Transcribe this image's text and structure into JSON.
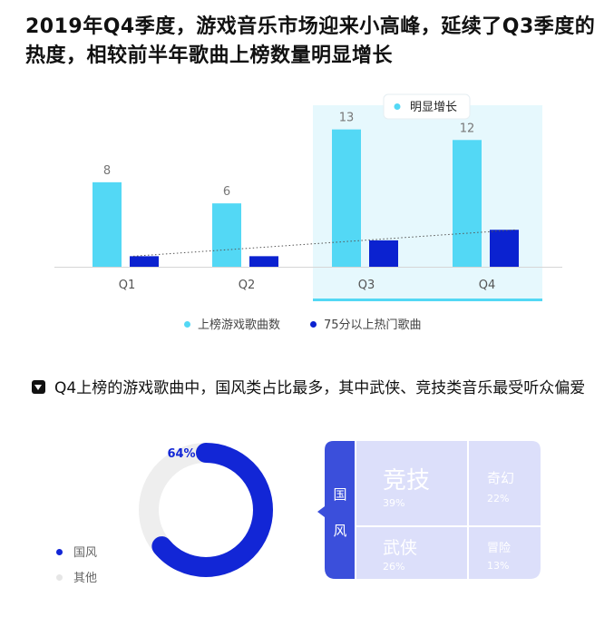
{
  "headline": "2019年Q4季度，游戏音乐市场迎来小高峰，延续了Q3季度的热度，相较前半年歌曲上榜数量明显增长",
  "chart_data": [
    {
      "type": "bar",
      "categories": [
        "Q1",
        "Q2",
        "Q3",
        "Q4"
      ],
      "series": [
        {
          "name": "上榜游戏歌曲数",
          "values": [
            8,
            6,
            13,
            12
          ],
          "color": "#53d8f5",
          "labeled": true
        },
        {
          "name": "75分以上热门歌曲",
          "values": [
            1,
            1,
            2.5,
            3.5
          ],
          "color": "#0b22d0",
          "labeled": false
        }
      ],
      "ylim": [
        0,
        14
      ],
      "highlight": {
        "categories": [
          "Q3",
          "Q4"
        ],
        "label": "明显增长"
      },
      "trendline": true,
      "legend": "bottom-center",
      "grid": false
    },
    {
      "type": "pie",
      "variant": "donut",
      "slices": [
        {
          "label": "国风",
          "value": 64,
          "display": "64%",
          "color": "#1226d6"
        },
        {
          "label": "其他",
          "value": 36,
          "color": "#eeeeee"
        }
      ],
      "legend": "left"
    },
    {
      "type": "treemap",
      "parent": "国风",
      "cells": [
        {
          "label": "竞技",
          "value": 39,
          "display": "39%"
        },
        {
          "label": "奇幻",
          "value": 22,
          "display": "22%"
        },
        {
          "label": "武侠",
          "value": 26,
          "display": "26%"
        },
        {
          "label": "冒险",
          "value": 13,
          "display": "13%"
        }
      ]
    }
  ],
  "section2_title": "Q4上榜的游戏歌曲中，国风类占比最多，其中武侠、竞技类音乐最受听众偏爱",
  "colors": {
    "light_bar": "#53d8f5",
    "dark_bar": "#0b22d0",
    "highlight_bg": "#e6f8fd",
    "highlight_line": "#53d8f5",
    "donut_main": "#1226d6",
    "donut_other": "#eeeeee",
    "treemap_parent": "#3b4fdb",
    "treemap_cell": "#dcdffa"
  }
}
